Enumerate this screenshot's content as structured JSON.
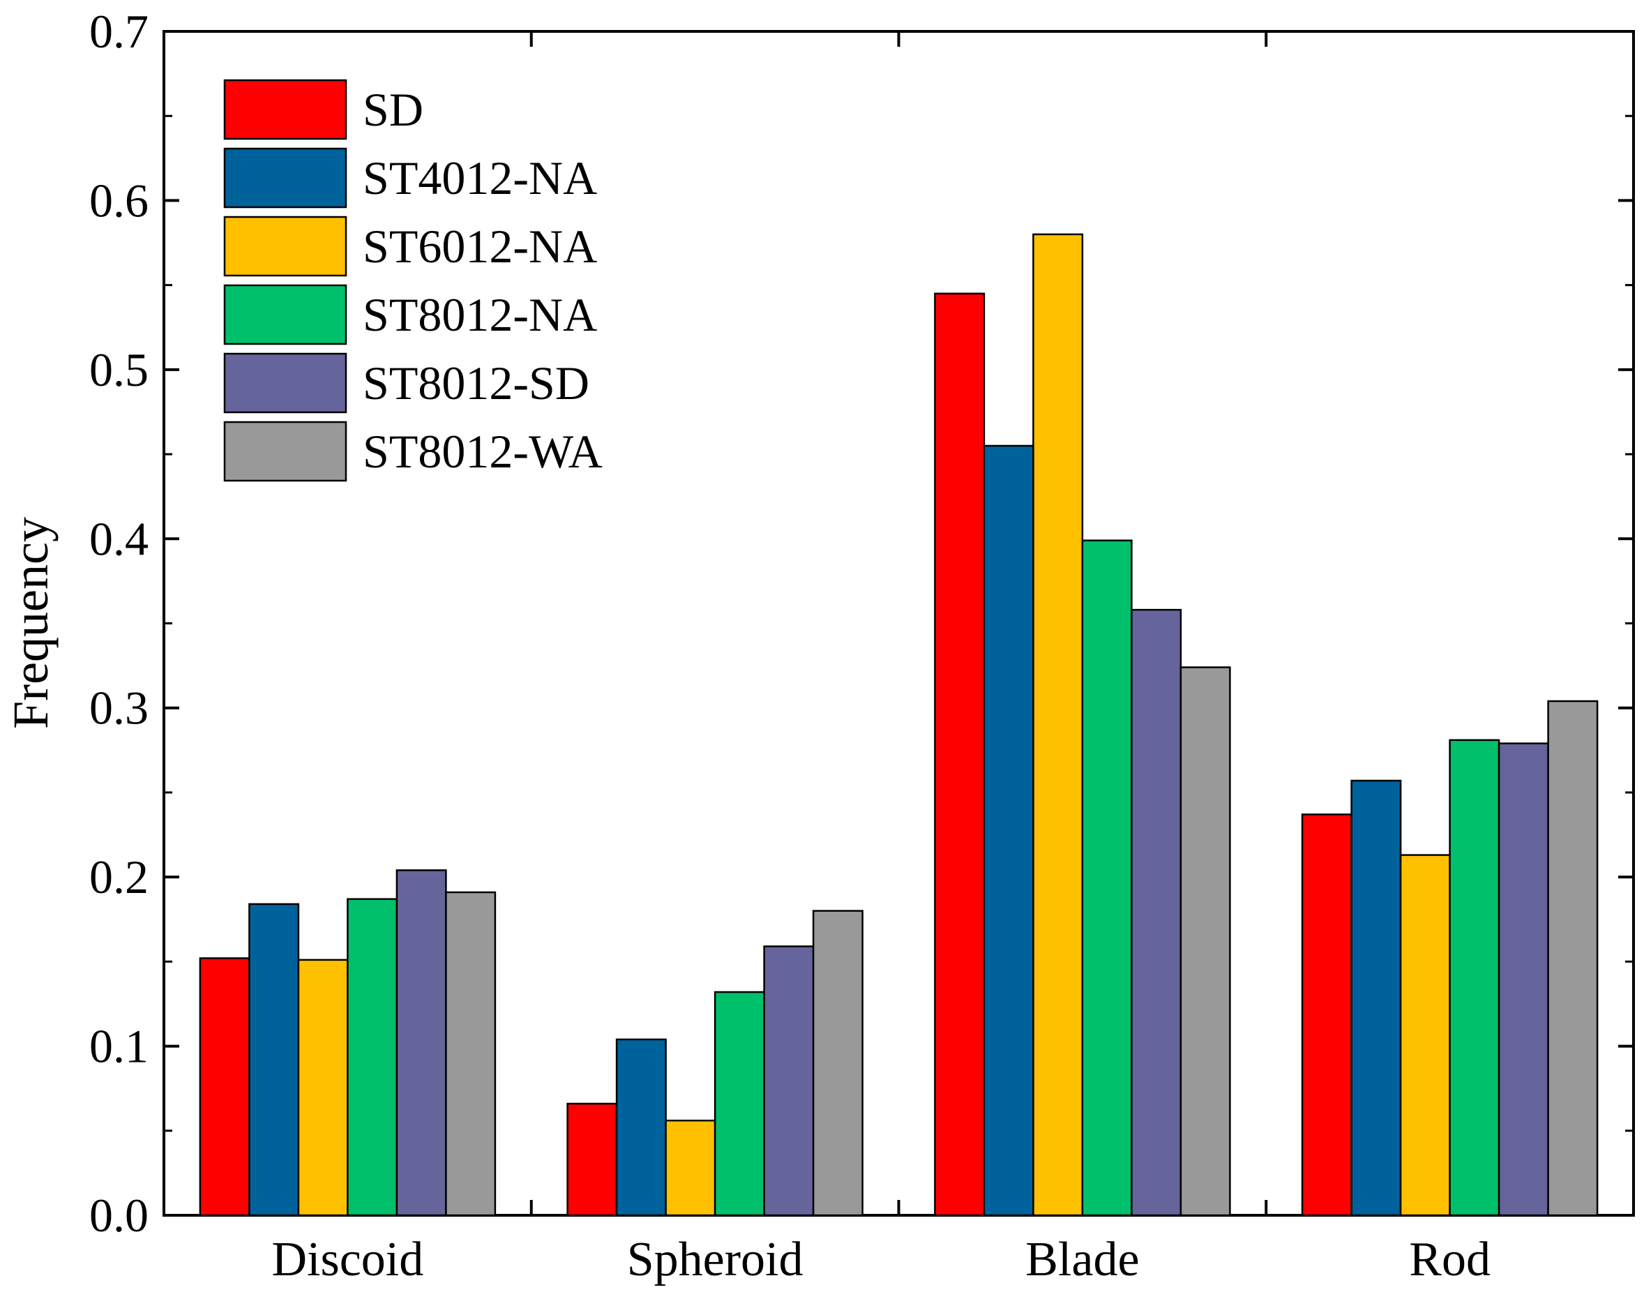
{
  "chart_data": {
    "type": "bar",
    "title": "",
    "xlabel": "",
    "ylabel": "Frequency",
    "ylim": [
      0.0,
      0.7
    ],
    "yticks": [
      "0.0",
      "0.1",
      "0.2",
      "0.3",
      "0.4",
      "0.5",
      "0.6",
      "0.7"
    ],
    "grid": false,
    "legend_position": "top-left",
    "categories": [
      "Discoid",
      "Spheroid",
      "Blade",
      "Rod"
    ],
    "series": [
      {
        "name": "SD",
        "color": "#ff0000",
        "values": [
          0.152,
          0.066,
          0.545,
          0.237
        ]
      },
      {
        "name": "ST4012-NA",
        "color": "#00629b",
        "values": [
          0.184,
          0.104,
          0.455,
          0.257
        ]
      },
      {
        "name": "ST6012-NA",
        "color": "#ffc000",
        "values": [
          0.151,
          0.056,
          0.58,
          0.213
        ]
      },
      {
        "name": "ST8012-NA",
        "color": "#00c06b",
        "values": [
          0.187,
          0.132,
          0.399,
          0.281
        ]
      },
      {
        "name": "ST8012-SD",
        "color": "#65659b",
        "values": [
          0.204,
          0.159,
          0.358,
          0.279
        ]
      },
      {
        "name": "ST8012-WA",
        "color": "#999999",
        "values": [
          0.191,
          0.18,
          0.324,
          0.304
        ]
      }
    ]
  }
}
